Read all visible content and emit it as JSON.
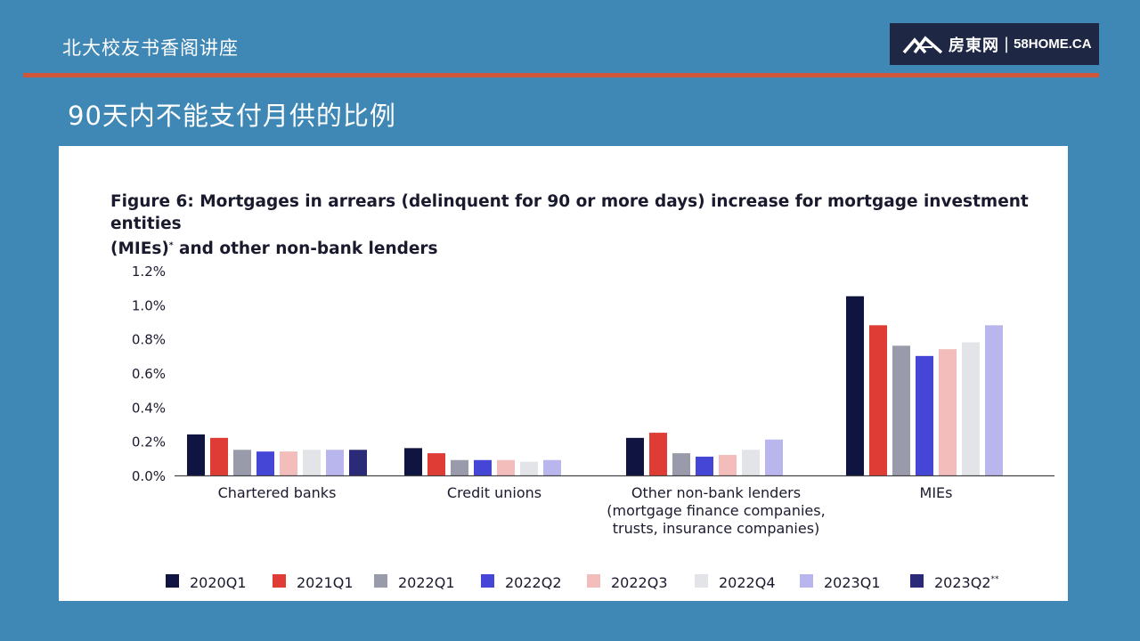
{
  "header": {
    "org_title": "北大校友书香阁讲座",
    "logo_brand": "房東网",
    "logo_separator": "|",
    "logo_site": "58HOME.CA",
    "slide_title": "90天内不能支付月供的比例"
  },
  "colors": {
    "background": "#3F87B5",
    "divider": "#D0573A",
    "logo_bg": "#1E2743"
  },
  "chart_data": {
    "type": "bar",
    "title": "Figure 6: Mortgages in arrears (delinquent for 90 or more days) increase for mortgage investment entities (MIEs)* and other non-bank lenders",
    "title_line1": "Figure 6: Mortgages in arrears (delinquent for 90 or more days) increase for mortgage investment entities",
    "title_line2": "(MIEs)",
    "title_marker": "*",
    "title_line2_rest": " and other non-bank lenders",
    "xlabel": "",
    "ylabel": "",
    "ylim": [
      0,
      1.2
    ],
    "yticks": [
      "0.0%",
      "0.2%",
      "0.4%",
      "0.6%",
      "0.8%",
      "1.0%",
      "1.2%"
    ],
    "grid": false,
    "legend_position": "bottom",
    "categories": [
      [
        "Chartered banks"
      ],
      [
        "Credit unions"
      ],
      [
        "Other non-bank lenders",
        "(mortgage finance companies,",
        "trusts, insurance companies)"
      ],
      [
        "MIEs"
      ]
    ],
    "series": [
      {
        "name": "2020Q1",
        "color": "#0F1540",
        "values": [
          0.24,
          0.16,
          0.22,
          1.05
        ]
      },
      {
        "name": "2021Q1",
        "color": "#E03C36",
        "values": [
          0.22,
          0.13,
          0.25,
          0.88
        ]
      },
      {
        "name": "2022Q1",
        "color": "#9A9BAA",
        "values": [
          0.15,
          0.09,
          0.13,
          0.76
        ]
      },
      {
        "name": "2022Q2",
        "color": "#4545D6",
        "values": [
          0.14,
          0.09,
          0.11,
          0.7
        ]
      },
      {
        "name": "2022Q3",
        "color": "#F2BDBA",
        "values": [
          0.14,
          0.09,
          0.12,
          0.74
        ]
      },
      {
        "name": "2022Q4",
        "color": "#E3E4E8",
        "values": [
          0.15,
          0.08,
          0.15,
          0.78
        ]
      },
      {
        "name": "2023Q1",
        "color": "#B8B6EC",
        "values": [
          0.15,
          0.09,
          0.21,
          0.88
        ]
      },
      {
        "name": "2023Q2",
        "name_marker": "**",
        "color": "#2B2A78",
        "values": [
          0.15,
          null,
          null,
          null
        ]
      }
    ]
  }
}
